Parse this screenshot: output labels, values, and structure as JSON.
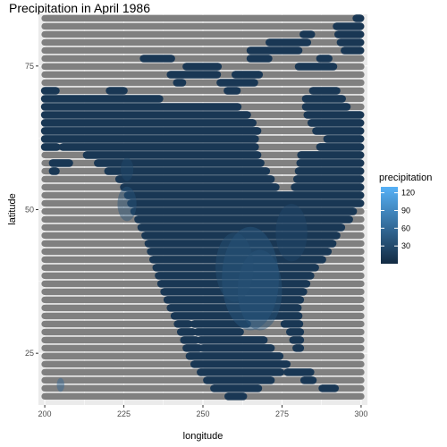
{
  "chart_data": {
    "type": "heatmap",
    "title": "Precipitation in April 1986",
    "xlabel": "longitude",
    "ylabel": "latitude",
    "xlim": [
      198,
      302
    ],
    "ylim": [
      16,
      84
    ],
    "x_ticks": [
      {
        "value": 200,
        "label": "200"
      },
      {
        "value": 225,
        "label": "225"
      },
      {
        "value": 250,
        "label": "250"
      },
      {
        "value": 275,
        "label": "275"
      },
      {
        "value": 300,
        "label": "300"
      }
    ],
    "y_ticks": [
      {
        "value": 25,
        "label": "25"
      },
      {
        "value": 50,
        "label": "50"
      },
      {
        "value": 75,
        "label": "75"
      }
    ],
    "grid": true,
    "colors": {
      "panel": "#ebebeb",
      "grid": "#ffffff",
      "missing": "#808080",
      "low": "#132b43",
      "high": "#56b1f7"
    },
    "legend": {
      "title": "precipitation",
      "position": "right",
      "range": [
        0,
        130
      ],
      "ticks": [
        {
          "value": 30,
          "label": "30"
        },
        {
          "value": 60,
          "label": "60"
        },
        {
          "value": 90,
          "label": "90"
        },
        {
          "value": 120,
          "label": "120"
        }
      ]
    },
    "grid_points": {
      "lon_range": [
        200,
        300
      ],
      "lat_range": [
        17.5,
        84.5
      ],
      "lat_step": 1.4,
      "typical_value": 12
    },
    "land_polygons": [
      {
        "name": "north-america",
        "points": [
          [
            200,
            60.5
          ],
          [
            205,
            61
          ],
          [
            212,
            60
          ],
          [
            218,
            57.5
          ],
          [
            224,
            55
          ],
          [
            228,
            50
          ],
          [
            232,
            45
          ],
          [
            235,
            40
          ],
          [
            238,
            35
          ],
          [
            242,
            30
          ],
          [
            246,
            24
          ],
          [
            250,
            21
          ],
          [
            254,
            18.5
          ],
          [
            258,
            17.5
          ],
          [
            263,
            17.5
          ],
          [
            266,
            18.5
          ],
          [
            270,
            19.5
          ],
          [
            274,
            21.5
          ],
          [
            277,
            22.5
          ],
          [
            276,
            24
          ],
          [
            273,
            25
          ],
          [
            269,
            27.5
          ],
          [
            266,
            28
          ],
          [
            262,
            27.5
          ],
          [
            262,
            29
          ],
          [
            266,
            31
          ],
          [
            272,
            31.5
          ],
          [
            277,
            29.5
          ],
          [
            279,
            26
          ],
          [
            281,
            25.5
          ],
          [
            281,
            29
          ],
          [
            280,
            33
          ],
          [
            282,
            36
          ],
          [
            285,
            39.5
          ],
          [
            289,
            42
          ],
          [
            292,
            45
          ],
          [
            294,
            47
          ],
          [
            296,
            48
          ],
          [
            298,
            50
          ],
          [
            300,
            50
          ],
          [
            300,
            66.5
          ],
          [
            294,
            67
          ],
          [
            291,
            67.5
          ],
          [
            288,
            66.5
          ],
          [
            284,
            62
          ],
          [
            281,
            60
          ],
          [
            280,
            56
          ],
          [
            278,
            54
          ],
          [
            276,
            57.5
          ],
          [
            272,
            59.5
          ],
          [
            268,
            63
          ],
          [
            265,
            66
          ],
          [
            260,
            68.5
          ],
          [
            254,
            68.8
          ],
          [
            248,
            68.5
          ],
          [
            240,
            69
          ],
          [
            234,
            69.5
          ],
          [
            228,
            70
          ],
          [
            224,
            71
          ],
          [
            218,
            70.5
          ],
          [
            212,
            70.5
          ],
          [
            206,
            70.5
          ],
          [
            200,
            71
          ],
          [
            200,
            60.5
          ]
        ]
      },
      {
        "name": "baja-california",
        "points": [
          [
            244,
            31.5
          ],
          [
            247,
            29
          ],
          [
            249.5,
            24.5
          ],
          [
            249,
            23
          ],
          [
            247,
            25.5
          ],
          [
            245,
            29
          ],
          [
            244,
            31.5
          ]
        ]
      },
      {
        "name": "cuba",
        "points": [
          [
            275.5,
            22
          ],
          [
            279,
            23
          ],
          [
            283,
            22.5
          ],
          [
            286,
            20.5
          ],
          [
            283,
            20
          ],
          [
            279,
            21
          ],
          [
            275.5,
            22
          ]
        ]
      },
      {
        "name": "hispaniola",
        "points": [
          [
            287,
            19.8
          ],
          [
            290,
            19.9
          ],
          [
            292,
            19
          ],
          [
            291,
            18
          ],
          [
            288,
            18.2
          ],
          [
            287,
            19.8
          ]
        ]
      },
      {
        "name": "jamaica",
        "points": [
          [
            281.5,
            18.4
          ],
          [
            283.5,
            18.4
          ],
          [
            283.5,
            17.8
          ],
          [
            281.5,
            17.8
          ],
          [
            281.5,
            18.4
          ]
        ]
      },
      {
        "name": "puerto-rico",
        "points": [
          [
            292.8,
            18.4
          ],
          [
            294.4,
            18.4
          ],
          [
            294.4,
            17.9
          ],
          [
            292.8,
            17.9
          ],
          [
            292.8,
            18.4
          ]
        ]
      },
      {
        "name": "baffin-island",
        "points": [
          [
            282,
            69
          ],
          [
            285,
            71
          ],
          [
            289,
            72
          ],
          [
            293,
            70.5
          ],
          [
            296,
            67.5
          ],
          [
            294,
            64.5
          ],
          [
            290,
            62.5
          ],
          [
            286,
            63.5
          ],
          [
            283,
            66
          ],
          [
            282,
            69
          ]
        ]
      },
      {
        "name": "arctic-island-1",
        "points": [
          [
            238,
            73
          ],
          [
            245,
            75
          ],
          [
            252,
            76
          ],
          [
            257,
            74
          ],
          [
            250,
            72.5
          ],
          [
            242,
            72
          ],
          [
            238,
            73
          ]
        ]
      },
      {
        "name": "arctic-island-2",
        "points": [
          [
            255,
            72
          ],
          [
            262,
            74
          ],
          [
            268,
            73.5
          ],
          [
            265,
            71
          ],
          [
            258,
            70.5
          ],
          [
            255,
            72
          ]
        ]
      },
      {
        "name": "arctic-island-3",
        "points": [
          [
            262,
            77
          ],
          [
            270,
            79
          ],
          [
            278,
            80
          ],
          [
            285,
            81
          ],
          [
            282,
            78
          ],
          [
            274,
            76.5
          ],
          [
            266,
            76
          ],
          [
            262,
            77
          ]
        ]
      },
      {
        "name": "arctic-island-4",
        "points": [
          [
            280,
            75
          ],
          [
            288,
            76.5
          ],
          [
            293,
            76
          ],
          [
            290,
            74
          ],
          [
            283,
            73.5
          ],
          [
            280,
            75
          ]
        ]
      },
      {
        "name": "arctic-island-5",
        "points": [
          [
            230,
            76
          ],
          [
            236,
            77.5
          ],
          [
            242,
            77
          ],
          [
            238,
            75.5
          ],
          [
            232,
            75
          ],
          [
            230,
            76
          ]
        ]
      },
      {
        "name": "greenland",
        "points": [
          [
            292,
            82
          ],
          [
            296,
            83
          ],
          [
            300,
            83.5
          ],
          [
            300,
            77
          ],
          [
            297,
            76.5
          ],
          [
            294,
            78
          ],
          [
            292,
            82
          ]
        ]
      },
      {
        "name": "aleutians",
        "points": [
          [
            200,
            57.5
          ],
          [
            206,
            59
          ],
          [
            208,
            58
          ],
          [
            203,
            56.5
          ],
          [
            200,
            57.5
          ]
        ]
      }
    ],
    "water_polygons": [
      {
        "name": "hudson-bay",
        "points": [
          [
            266,
            62
          ],
          [
            270,
            64
          ],
          [
            276,
            63
          ],
          [
            279,
            60
          ],
          [
            280,
            56
          ],
          [
            278,
            52.5
          ],
          [
            274,
            53
          ],
          [
            271,
            56
          ],
          [
            268,
            58.5
          ],
          [
            266,
            62
          ]
        ]
      },
      {
        "name": "hudson-strait",
        "points": [
          [
            278,
            62
          ],
          [
            282,
            63.8
          ],
          [
            288,
            63.5
          ],
          [
            290,
            61.5
          ],
          [
            285,
            60.5
          ],
          [
            280,
            60.5
          ],
          [
            278,
            62
          ]
        ]
      },
      {
        "name": "gulf-of-california",
        "points": [
          [
            245,
            31
          ],
          [
            246.5,
            31
          ],
          [
            250,
            26
          ],
          [
            249.5,
            24.8
          ],
          [
            248.5,
            26.5
          ],
          [
            245,
            31
          ]
        ]
      }
    ],
    "hotspots": [
      {
        "lon": 265,
        "lat": 38,
        "value": 45,
        "radius": 9
      },
      {
        "lon": 268,
        "lat": 36,
        "value": 40,
        "radius": 7
      },
      {
        "lon": 260,
        "lat": 40,
        "value": 35,
        "radius": 6
      },
      {
        "lon": 226,
        "lat": 51,
        "value": 40,
        "radius": 3
      },
      {
        "lon": 226,
        "lat": 57,
        "value": 30,
        "radius": 2
      },
      {
        "lon": 205,
        "lat": 19.5,
        "value": 60,
        "radius": 1.2
      },
      {
        "lon": 278,
        "lat": 46,
        "value": 28,
        "radius": 5
      }
    ]
  }
}
